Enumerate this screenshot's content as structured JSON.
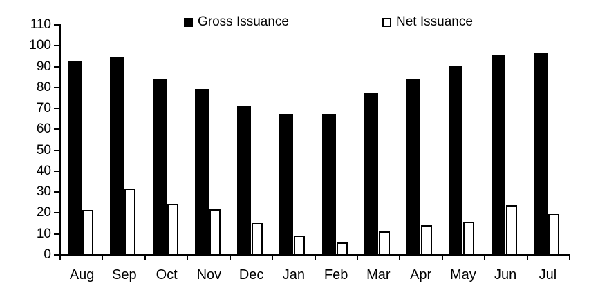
{
  "chart_data": {
    "type": "bar",
    "title": "",
    "xlabel": "",
    "ylabel": "",
    "categories": [
      "Aug",
      "Sep",
      "Oct",
      "Nov",
      "Dec",
      "Jan",
      "Feb",
      "Mar",
      "Apr",
      "May",
      "Jun",
      "Jul"
    ],
    "series": [
      {
        "name": "Gross Issuance",
        "swatch": "filled-square",
        "fill": "#000000",
        "stroke": "#000000",
        "values": [
          92,
          94,
          84,
          79,
          71,
          67,
          67,
          77,
          84,
          90,
          95,
          96
        ]
      },
      {
        "name": "Net Issuance",
        "swatch": "open-square",
        "fill": "#ffffff",
        "stroke": "#000000",
        "values": [
          21,
          31.5,
          24,
          21.5,
          15,
          9,
          5.5,
          11,
          14,
          15.5,
          23.5,
          19
        ]
      }
    ],
    "ylim": [
      0,
      110
    ],
    "ytick_step": 10,
    "ytick_labels": [
      "110",
      "100",
      "90",
      "80",
      "70",
      "60",
      "50",
      "40",
      "30",
      "20",
      "10",
      "0"
    ],
    "legend_position": "top",
    "grid": false,
    "background": "#ffffff",
    "axis_color": "#000000",
    "text_color": "#000000"
  }
}
